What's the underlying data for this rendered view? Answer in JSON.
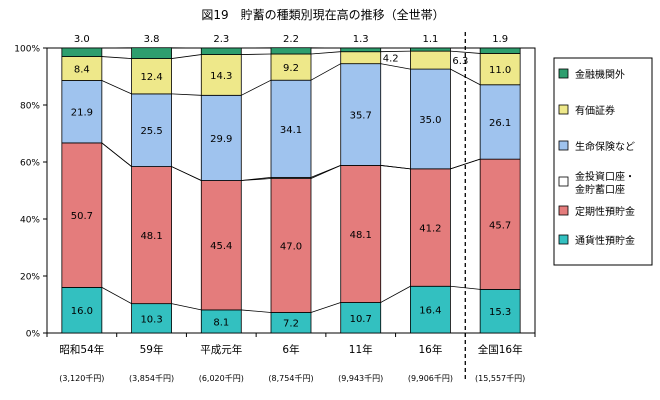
{
  "chart_data": {
    "type": "bar",
    "title": "図19　貯蓄の種類別現在高の推移（全世帯）",
    "categories": [
      "昭和54年",
      "59年",
      "平成元年",
      "6年",
      "11年",
      "16年",
      "全国16年"
    ],
    "totals": [
      "(3,120千円)",
      "(3,854千円)",
      "(6,020千円)",
      "(8,754千円)",
      "(9,943千円)",
      "(9,906千円)",
      "(15,557千円)"
    ],
    "ylim": [
      0,
      100
    ],
    "yticks": [
      0,
      20,
      40,
      60,
      80,
      100
    ],
    "ytick_labels": [
      "0%",
      "20%",
      "40%",
      "60%",
      "80%",
      "100%"
    ],
    "stacked": true,
    "series": [
      {
        "name": "通貨性預貯金",
        "color": "#33c0c0",
        "values": [
          16.0,
          10.3,
          8.1,
          7.2,
          10.7,
          16.4,
          15.3
        ],
        "labels": [
          "16.0",
          "10.3",
          "8.1",
          "7.2",
          "10.7",
          "16.4",
          "15.3"
        ]
      },
      {
        "name": "定期性預貯金",
        "color": "#e47c7c",
        "values": [
          50.7,
          48.1,
          45.4,
          47.0,
          48.1,
          41.2,
          45.7
        ],
        "labels": [
          "50.7",
          "48.1",
          "45.4",
          "47.0",
          "48.1",
          "41.2",
          "45.7"
        ]
      },
      {
        "name": "金投資口座・\n金貯蓄口座",
        "color": "#ffffff",
        "values": [
          0,
          0,
          0,
          0.4,
          0,
          0,
          0
        ],
        "labels": [
          "",
          "",
          "",
          "",
          "",
          "",
          ""
        ]
      },
      {
        "name": "生命保険など",
        "color": "#9fc3ee",
        "values": [
          21.9,
          25.5,
          29.9,
          34.1,
          35.7,
          35.0,
          26.1
        ],
        "labels": [
          "21.9",
          "25.5",
          "29.9",
          "34.1",
          "35.7",
          "35.0",
          "26.1"
        ]
      },
      {
        "name": "有価証券",
        "color": "#eee88a",
        "values": [
          8.4,
          12.4,
          14.3,
          9.2,
          4.2,
          6.3,
          11.0
        ],
        "labels": [
          "8.4",
          "12.4",
          "14.3",
          "9.2",
          "4.2",
          "6.3",
          "11.0"
        ]
      },
      {
        "name": "金融機関外",
        "color": "#2e9e6e",
        "values": [
          3.0,
          3.8,
          2.3,
          2.2,
          1.3,
          1.1,
          1.9
        ],
        "labels": [
          "3.0",
          "3.8",
          "2.3",
          "2.2",
          "1.3",
          "1.1",
          "1.9"
        ]
      }
    ],
    "legend_order": [
      "金融機関外",
      "有価証券",
      "生命保険など",
      "金投資口座・\n金貯蓄口座",
      "定期性預貯金",
      "通貨性預貯金"
    ],
    "legend_position": "right",
    "grid": false
  }
}
